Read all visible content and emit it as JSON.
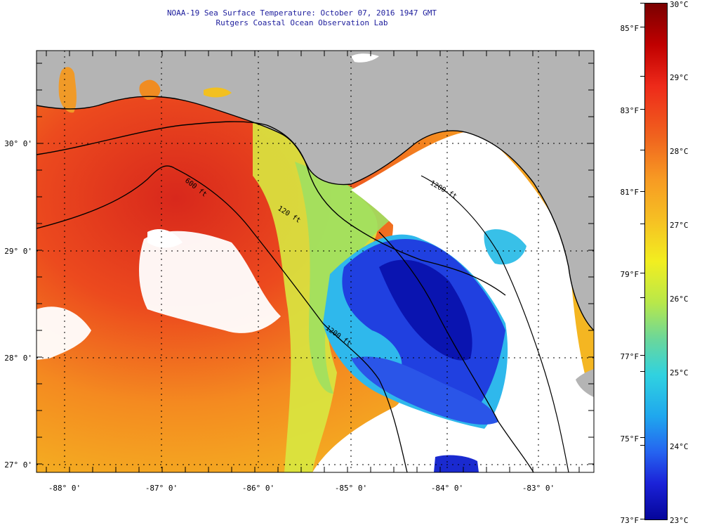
{
  "title": {
    "line1": "NOAA-19 Sea Surface Temperature:  October 07, 2016 1947 GMT",
    "line2": "Rutgers Coastal Ocean Observation Lab"
  },
  "map": {
    "lat_labels": [
      "30° 0'",
      "29° 0'",
      "28° 0'",
      "27° 0'"
    ],
    "lon_labels": [
      "-88° 0'",
      "-87° 0'",
      "-86° 0'",
      "-85° 0'",
      "-84° 0'",
      "-83° 0'"
    ],
    "contours": [
      "120 ft",
      "600 ft",
      "1200 ft",
      "1200 ft"
    ],
    "colors": {
      "land": "#b4b4b4",
      "cloud": "#ffffff",
      "coast": "#000000"
    }
  },
  "colorbar": {
    "f_labels": [
      "85°F",
      "83°F",
      "81°F",
      "79°F",
      "77°F",
      "75°F",
      "73°F"
    ],
    "c_labels": [
      "30°C",
      "29°C",
      "28°C",
      "27°C",
      "26°C",
      "25°C",
      "24°C",
      "23°C"
    ],
    "range_c": [
      23,
      30
    ]
  }
}
